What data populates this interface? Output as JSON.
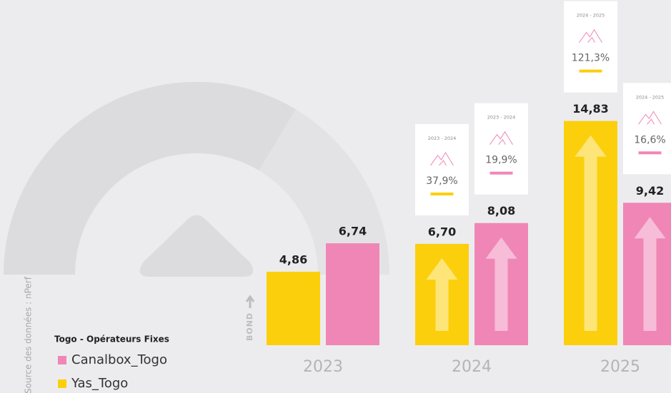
{
  "chart_data": {
    "type": "bar",
    "categories": [
      "2023",
      "2024",
      "2025"
    ],
    "series": [
      {
        "name": "Canalbox_Togo",
        "color": "#f086b6",
        "values": [
          6.74,
          8.08,
          9.42
        ],
        "value_labels": [
          "6,74",
          "8,08",
          "9,42"
        ],
        "growth": [
          null,
          {
            "period": "2023 - 2024",
            "value": 19.9,
            "label": "19,9%"
          },
          {
            "period": "2024 - 2025",
            "value": 16.6,
            "label": "16,6%"
          }
        ]
      },
      {
        "name": "Yas_Togo",
        "color": "#fccf0c",
        "values": [
          4.86,
          6.7,
          14.83
        ],
        "value_labels": [
          "4,86",
          "6,70",
          "14,83"
        ],
        "growth": [
          null,
          {
            "period": "2023 - 2024",
            "value": 37.9,
            "label": "37,9%"
          },
          {
            "period": "2024 - 2025",
            "value": 121.3,
            "label": "121,3%"
          }
        ]
      }
    ],
    "ylim": [
      0,
      20
    ],
    "legend_title": "Togo - Opérateurs Fixes",
    "side_label": "BOND",
    "source": "Source des données : nPerf"
  }
}
